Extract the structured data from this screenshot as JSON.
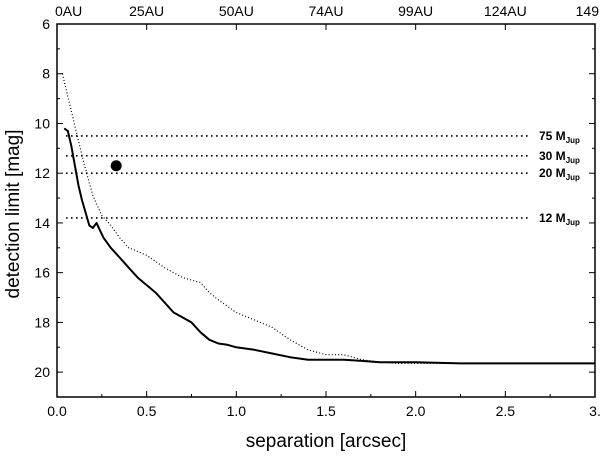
{
  "chart_data": {
    "type": "line",
    "title": "",
    "xlabel": "separation [arcsec]",
    "ylabel": "detection limit [mag]",
    "xlim": [
      0,
      3
    ],
    "ylim": [
      21,
      6
    ],
    "y_inverted": true,
    "x_ticks": [
      0.0,
      0.5,
      1.0,
      1.5,
      2.0,
      2.5,
      3.0
    ],
    "x_tick_labels": [
      "0.0",
      "0.5",
      "1.0",
      "1.5",
      "2.0",
      "2.5",
      "3."
    ],
    "y_ticks": [
      6,
      8,
      10,
      12,
      14,
      16,
      18,
      20
    ],
    "y_tick_labels": [
      "6",
      "8",
      "10",
      "12",
      "14",
      "16",
      "18",
      "20"
    ],
    "top_axis": {
      "ticks": [
        0.0,
        0.5,
        1.0,
        1.5,
        2.0,
        2.5,
        3.0
      ],
      "tick_labels": [
        "0AU",
        "25AU",
        "50AU",
        "74AU",
        "99AU",
        "124AU",
        "149"
      ]
    },
    "grid": false,
    "series": [
      {
        "style": "solid",
        "x": [
          0.04,
          0.06,
          0.08,
          0.1,
          0.12,
          0.14,
          0.16,
          0.18,
          0.2,
          0.22,
          0.24,
          0.26,
          0.3,
          0.35,
          0.4,
          0.45,
          0.5,
          0.55,
          0.6,
          0.65,
          0.7,
          0.75,
          0.8,
          0.85,
          0.9,
          0.95,
          1.0,
          1.1,
          1.2,
          1.3,
          1.4,
          1.5,
          1.6,
          1.7,
          1.8,
          1.9,
          2.0,
          2.25,
          2.5,
          2.75,
          3.0
        ],
        "y": [
          10.2,
          10.3,
          10.9,
          11.7,
          12.5,
          13.1,
          13.6,
          14.1,
          14.2,
          14.0,
          14.3,
          14.6,
          15.0,
          15.4,
          15.8,
          16.2,
          16.5,
          16.8,
          17.2,
          17.6,
          17.8,
          18.0,
          18.4,
          18.7,
          18.85,
          18.9,
          19.0,
          19.1,
          19.25,
          19.4,
          19.5,
          19.5,
          19.5,
          19.55,
          19.6,
          19.6,
          19.6,
          19.65,
          19.65,
          19.65,
          19.65
        ]
      },
      {
        "style": "dotted",
        "x": [
          0.03,
          0.05,
          0.1,
          0.15,
          0.2,
          0.25,
          0.3,
          0.35,
          0.4,
          0.5,
          0.6,
          0.7,
          0.8,
          0.85,
          0.9,
          1.0,
          1.1,
          1.2,
          1.3,
          1.4,
          1.5,
          1.6,
          1.7,
          1.8,
          1.9,
          2.0,
          2.5,
          3.0
        ],
        "y": [
          8.0,
          8.6,
          10.1,
          11.6,
          12.9,
          13.7,
          14.1,
          14.6,
          15.0,
          15.3,
          15.8,
          16.2,
          16.4,
          16.8,
          17.1,
          17.6,
          17.9,
          18.2,
          18.7,
          19.1,
          19.3,
          19.3,
          19.5,
          19.6,
          19.65,
          19.65,
          19.65,
          19.65
        ]
      }
    ],
    "reference_lines": [
      {
        "y": 10.5,
        "label_main": "75 M",
        "label_sub": "Jup"
      },
      {
        "y": 11.3,
        "label_main": "30 M",
        "label_sub": "Jup"
      },
      {
        "y": 12.0,
        "label_main": "20 M",
        "label_sub": "Jup"
      },
      {
        "y": 13.8,
        "label_main": "12 M",
        "label_sub": "Jup"
      }
    ],
    "points": [
      {
        "x": 0.33,
        "y": 11.7
      }
    ]
  }
}
